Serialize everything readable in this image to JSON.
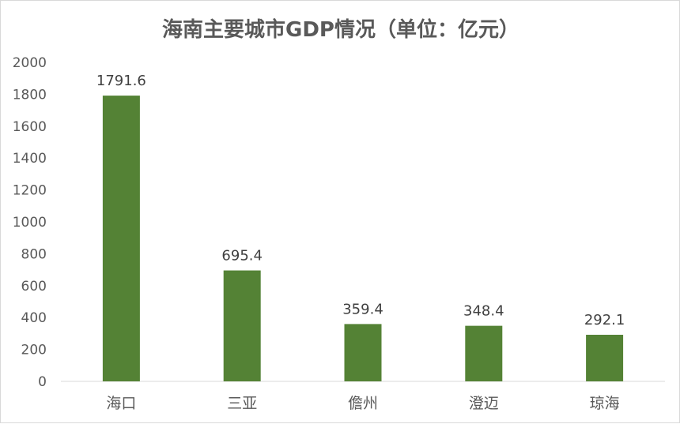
{
  "chart_data": {
    "type": "bar",
    "title": "海南主要城市GDP情况（单位：亿元）",
    "categories": [
      "海口",
      "三亚",
      "儋州",
      "澄迈",
      "琼海"
    ],
    "values": [
      1791.6,
      695.4,
      359.4,
      348.4,
      292.1
    ],
    "data_labels": [
      "1791.6",
      "695.4",
      "359.4",
      "348.4",
      "292.1"
    ],
    "yticks": [
      "0",
      "200",
      "400",
      "600",
      "800",
      "1000",
      "1200",
      "1400",
      "1600",
      "1800",
      "2000"
    ],
    "ylim": [
      0,
      2000
    ],
    "xlabel": "",
    "ylabel": "",
    "grid": false,
    "legend": "none",
    "bar_color": "#548235"
  }
}
